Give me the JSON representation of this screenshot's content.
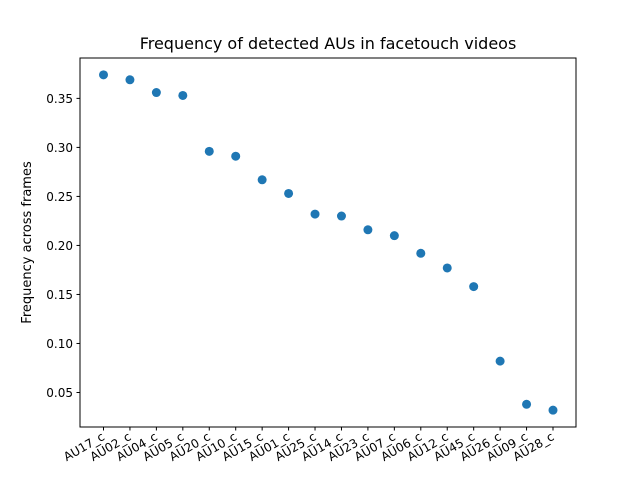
{
  "chart_data": {
    "type": "scatter",
    "title": "Frequency of detected AUs in facetouch videos",
    "xlabel": "",
    "ylabel": "Frequency across frames",
    "categories": [
      "AU17_c",
      "AU02_c",
      "AU04_c",
      "AU05_c",
      "AU20_c",
      "AU10_c",
      "AU15_c",
      "AU01_c",
      "AU25_c",
      "AU14_c",
      "AU23_c",
      "AU07_c",
      "AU06_c",
      "AU12_c",
      "AU45_c",
      "AU26_c",
      "AU09_c",
      "AU28_c"
    ],
    "values": [
      0.374,
      0.369,
      0.356,
      0.353,
      0.296,
      0.291,
      0.267,
      0.253,
      0.232,
      0.23,
      0.216,
      0.21,
      0.192,
      0.177,
      0.158,
      0.082,
      0.038,
      0.032
    ],
    "yticks": [
      0.05,
      0.1,
      0.15,
      0.2,
      0.25,
      0.3,
      0.35
    ],
    "ytick_labels": [
      "0.05",
      "0.10",
      "0.15",
      "0.20",
      "0.25",
      "0.30",
      "0.35"
    ],
    "ylim": [
      0.0148,
      0.3912
    ],
    "grid": false,
    "marker_color": "#1f77b4"
  }
}
